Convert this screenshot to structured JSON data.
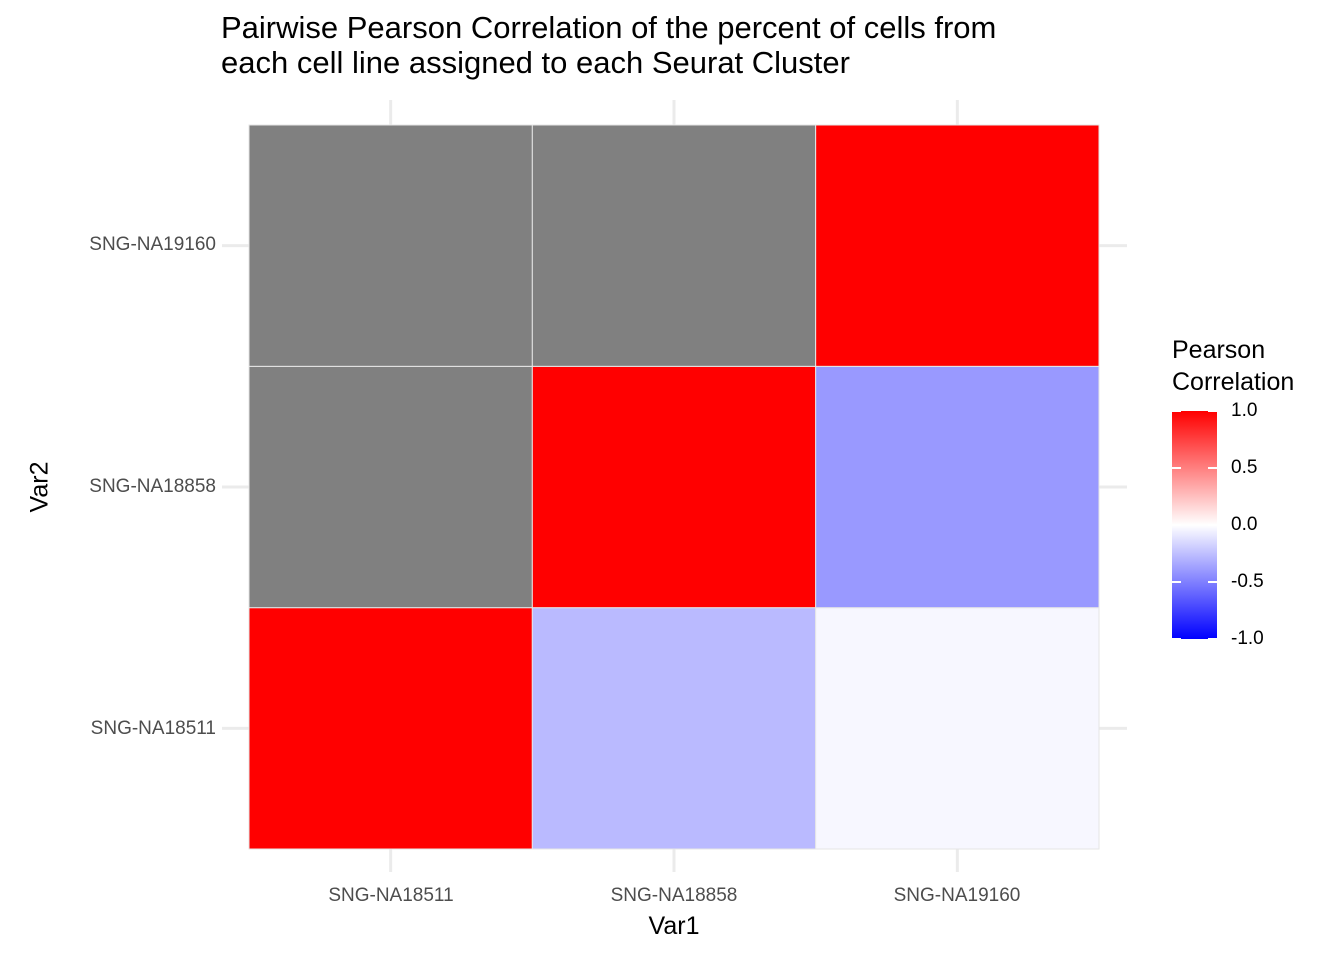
{
  "chart_data": {
    "type": "heatmap",
    "title_lines": [
      "Pairwise Pearson Correlation of the percent of cells from",
      "each cell line assigned to each Seurat Cluster"
    ],
    "xlabel": "Var1",
    "ylabel": "Var2",
    "x_categories": [
      "SNG-NA18511",
      "SNG-NA18858",
      "SNG-NA19160"
    ],
    "y_categories": [
      "SNG-NA18511",
      "SNG-NA18858",
      "SNG-NA19160"
    ],
    "cells": [
      {
        "x": "SNG-NA18511",
        "y": "SNG-NA18511",
        "value": 1.0
      },
      {
        "x": "SNG-NA18858",
        "y": "SNG-NA18511",
        "value": -0.27
      },
      {
        "x": "SNG-NA19160",
        "y": "SNG-NA18511",
        "value": -0.03
      },
      {
        "x": "SNG-NA18511",
        "y": "SNG-NA18858",
        "value": null
      },
      {
        "x": "SNG-NA18858",
        "y": "SNG-NA18858",
        "value": 1.0
      },
      {
        "x": "SNG-NA19160",
        "y": "SNG-NA18858",
        "value": -0.4
      },
      {
        "x": "SNG-NA18511",
        "y": "SNG-NA19160",
        "value": null
      },
      {
        "x": "SNG-NA18858",
        "y": "SNG-NA19160",
        "value": null
      },
      {
        "x": "SNG-NA19160",
        "y": "SNG-NA19160",
        "value": 1.0
      }
    ],
    "color_scale": {
      "low": "#0000ff",
      "mid": "#ffffff",
      "high": "#ff0000",
      "limits": [
        -1,
        1
      ],
      "na_color": "#808080"
    },
    "legend": {
      "title_lines": [
        "Pearson",
        "Correlation"
      ],
      "ticks": [
        1.0,
        0.5,
        0.0,
        -0.5,
        -1.0
      ],
      "tick_labels": [
        "1.0",
        "0.5",
        "0.0",
        "-0.5",
        "-1.0"
      ],
      "position": "right"
    },
    "grid": true
  }
}
